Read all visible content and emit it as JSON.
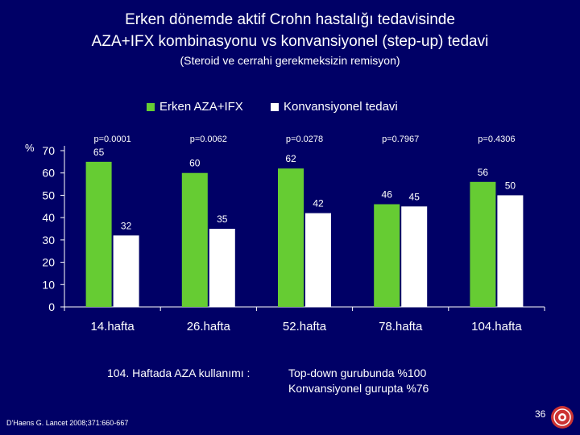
{
  "slide": {
    "title_line1": "Erken dönemde  aktif  Crohn hastalığı tedavisinde",
    "title_line2": "AZA+IFX kombinasyonu  vs  konvansiyonel (step-up)  tedavi",
    "subtitle": "(Steroid ve cerrahi gerekmeksizin remisyon)",
    "footnote_left": "104. Haftada  AZA kullanımı :",
    "footnote_right_line1": "Top-down gurubunda   %100",
    "footnote_right_line2": "Konvansiyonel gurupta  %76",
    "reference": "D'Haens G. Lancet 2008;371:660-667",
    "page_number": "36",
    "logo_icon": "university-seal-icon"
  },
  "colors": {
    "background": "#000066",
    "series_a": "#66cc33",
    "series_b": "#ffffff",
    "text": "#ffffff"
  },
  "chart_data": {
    "type": "bar",
    "title": "",
    "ylabel": "%",
    "xlabel": "",
    "ylim": [
      0,
      70
    ],
    "yticks": [
      0,
      10,
      20,
      30,
      40,
      50,
      60,
      70
    ],
    "categories": [
      "14.hafta",
      "26.hafta",
      "52.hafta",
      "78.hafta",
      "104.hafta"
    ],
    "series": [
      {
        "name": "Erken AZA+IFX",
        "values": [
          65,
          60,
          62,
          46,
          56
        ]
      },
      {
        "name": "Konvansiyonel tedavi",
        "values": [
          32,
          35,
          42,
          45,
          50
        ]
      }
    ],
    "p_values": [
      "p=0.0001",
      "p=0.0062",
      "p=0.0278",
      "p=0.7967",
      "p=0.4306"
    ],
    "legend_position": "top-center",
    "grid": false
  }
}
